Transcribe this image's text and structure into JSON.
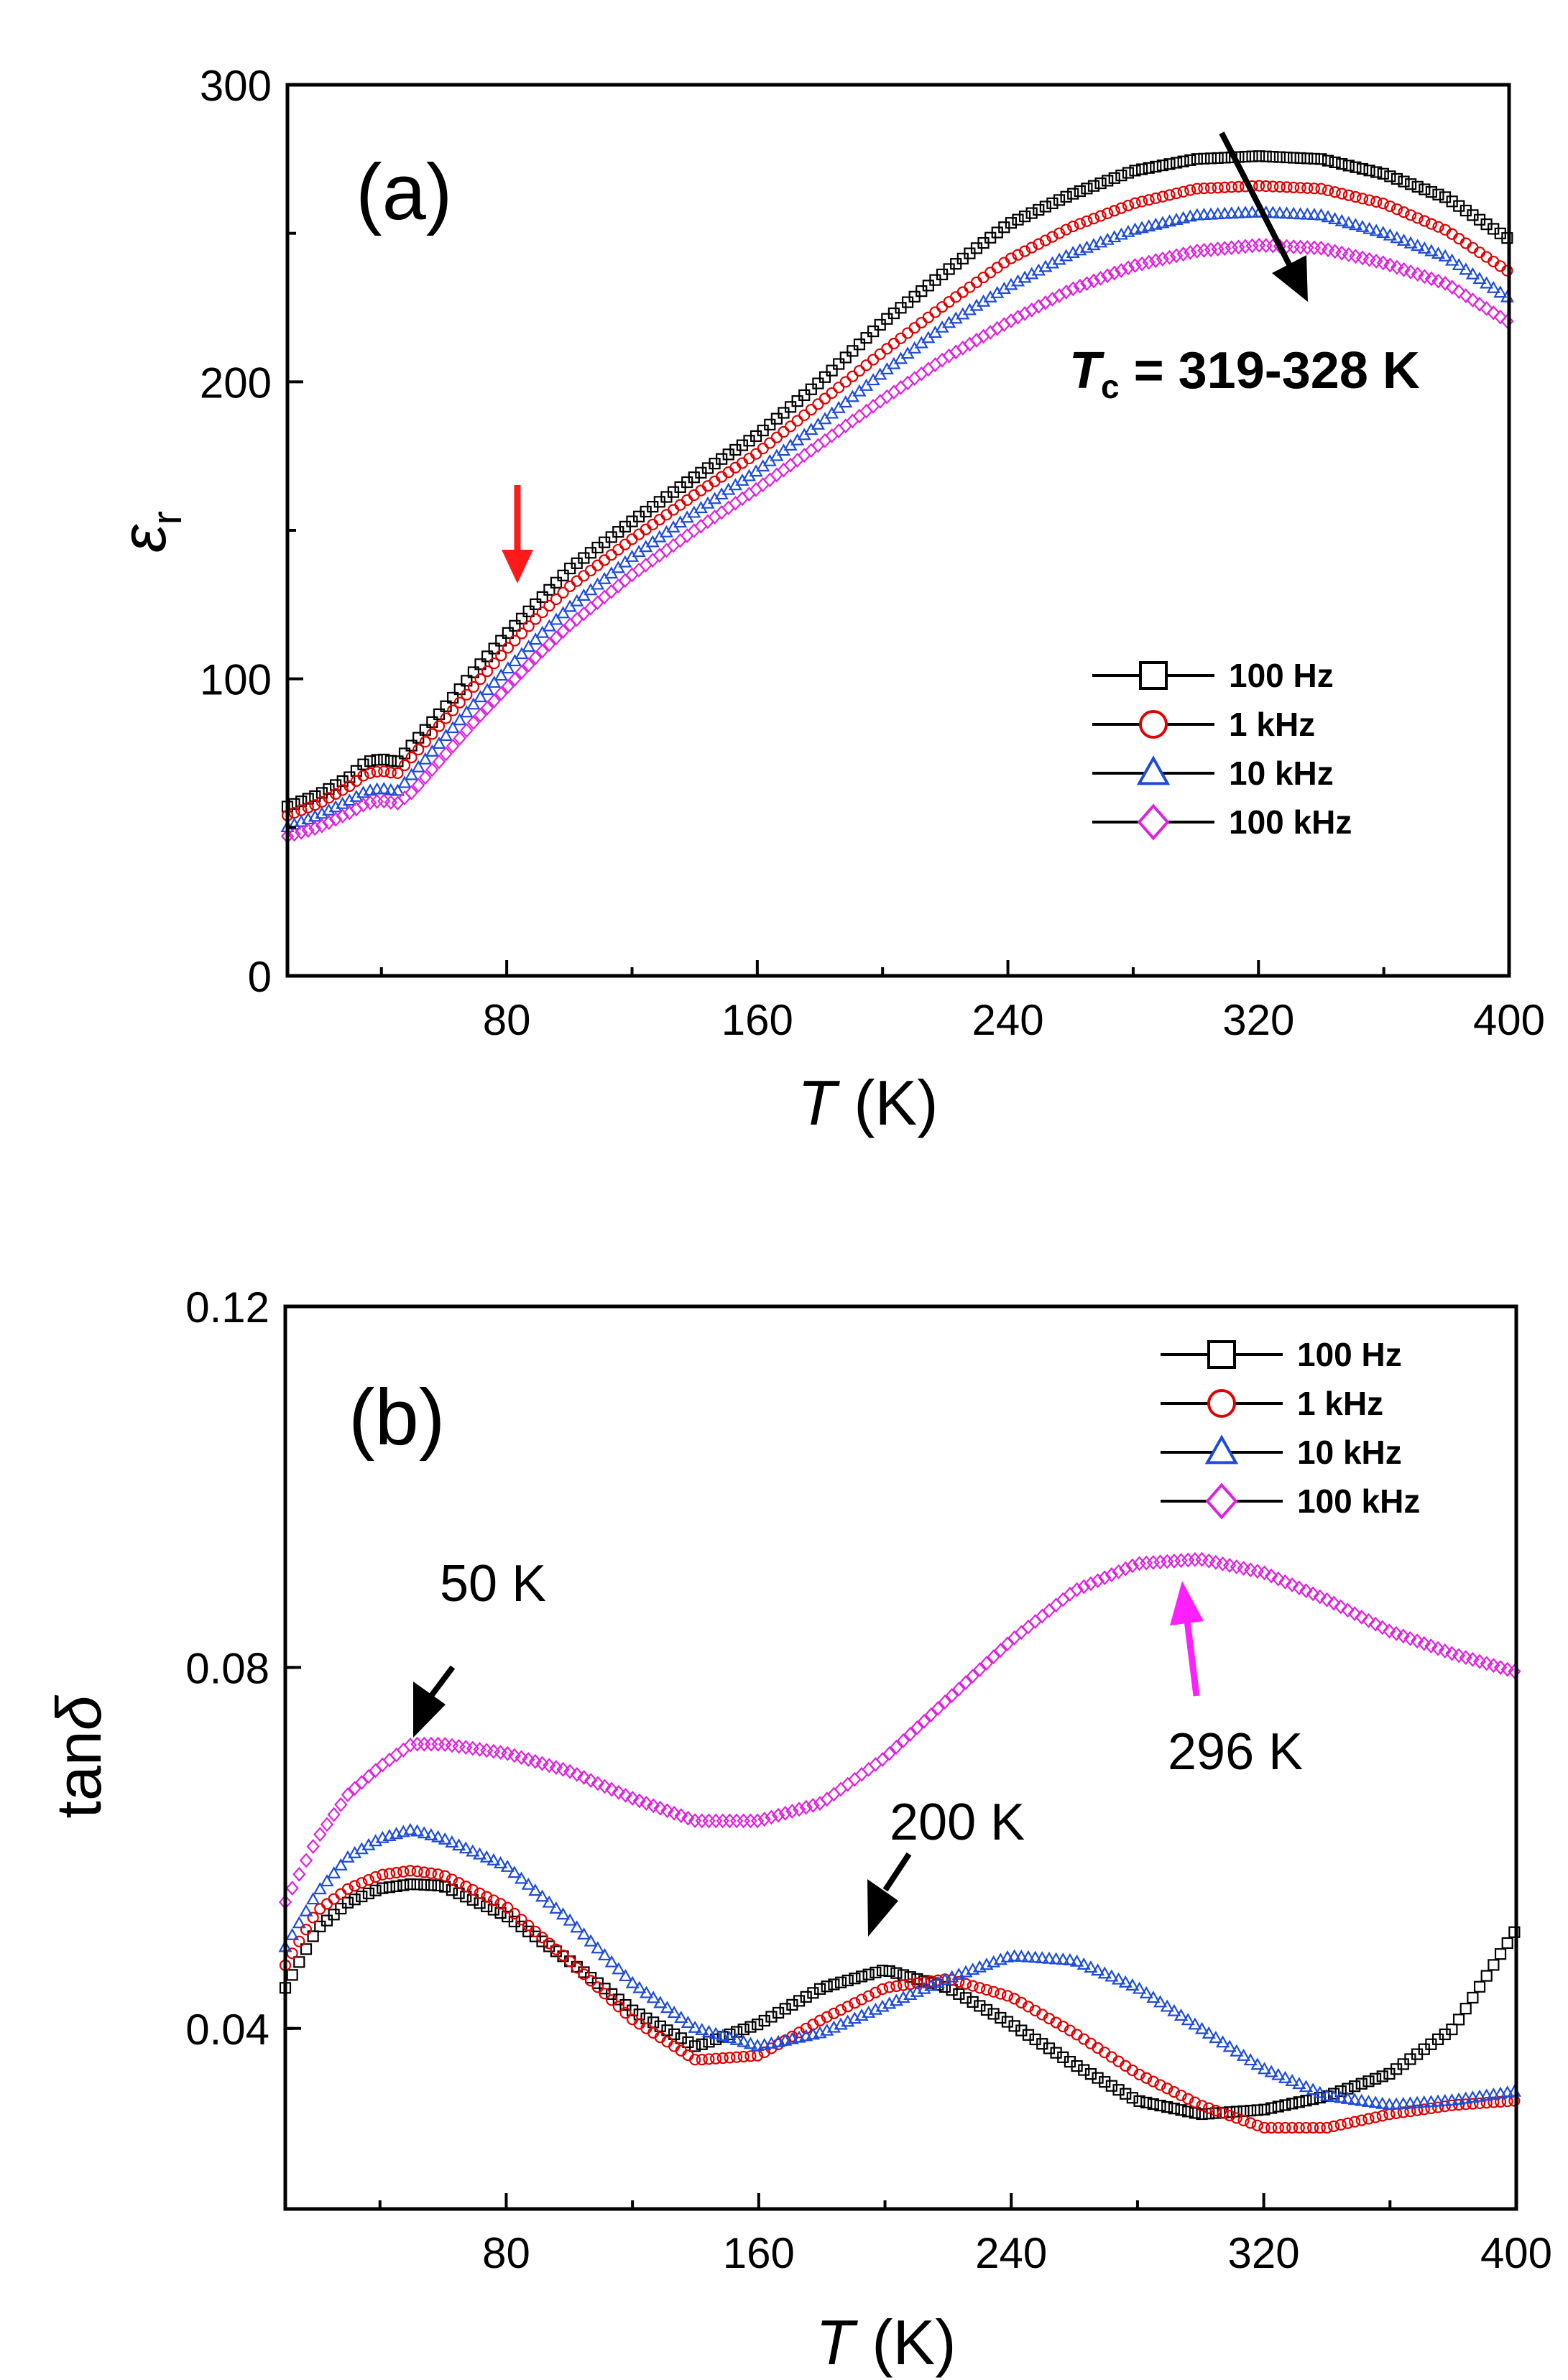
{
  "chart_data": [
    {
      "type": "scatter",
      "panel_label": "(a)",
      "xlabel_italic": "T",
      "xlabel_rest": " (K)",
      "ylabel_main": "ε",
      "ylabel_sub": "r",
      "xlim": [
        10,
        400
      ],
      "ylim": [
        0,
        300
      ],
      "xticks": [
        80,
        160,
        240,
        320,
        400
      ],
      "yticks": [
        0,
        100,
        200,
        300
      ],
      "legend": "center-right",
      "grid": false,
      "annotation_tc_italic": "T",
      "annotation_tc_sub": "c",
      "annotation_tc_rest": " = 319-328 K",
      "series": [
        {
          "name": "100 Hz",
          "marker": "square",
          "color": "#000000",
          "x": [
            10,
            20,
            30,
            35,
            40,
            45,
            50,
            60,
            70,
            80,
            90,
            100,
            120,
            140,
            160,
            180,
            200,
            220,
            240,
            260,
            280,
            300,
            320,
            340,
            360,
            380,
            400
          ],
          "y": [
            57,
            61,
            67,
            72,
            73,
            72,
            78,
            90,
            103,
            115,
            126,
            137,
            153,
            168,
            182,
            200,
            220,
            237,
            253,
            263,
            271,
            275,
            276,
            275,
            270,
            262,
            248
          ]
        },
        {
          "name": "1 kHz",
          "marker": "circle",
          "color": "#e00000",
          "x": [
            10,
            20,
            30,
            35,
            40,
            45,
            50,
            60,
            70,
            80,
            90,
            100,
            120,
            140,
            160,
            180,
            200,
            220,
            240,
            260,
            280,
            300,
            320,
            340,
            360,
            380,
            400
          ],
          "y": [
            54,
            58,
            64,
            68,
            69,
            68,
            74,
            86,
            98,
            110,
            121,
            131,
            147,
            162,
            176,
            193,
            210,
            226,
            241,
            252,
            260,
            265,
            266,
            265,
            260,
            251,
            237
          ]
        },
        {
          "name": "10 kHz",
          "marker": "triangle",
          "color": "#1e4cd8",
          "x": [
            10,
            20,
            30,
            35,
            40,
            45,
            50,
            60,
            70,
            80,
            90,
            100,
            120,
            140,
            160,
            180,
            200,
            220,
            240,
            260,
            280,
            300,
            320,
            340,
            360,
            380,
            400
          ],
          "y": [
            50,
            54,
            59,
            62,
            63,
            62,
            68,
            80,
            92,
            103,
            114,
            124,
            141,
            156,
            170,
            186,
            203,
            219,
            232,
            243,
            251,
            256,
            257,
            256,
            250,
            242,
            228
          ]
        },
        {
          "name": "100 kHz",
          "marker": "diamond",
          "color": "#e020e0",
          "x": [
            10,
            20,
            30,
            35,
            40,
            45,
            50,
            60,
            70,
            80,
            90,
            100,
            120,
            140,
            160,
            180,
            200,
            220,
            240,
            260,
            280,
            300,
            320,
            340,
            360,
            380,
            400
          ],
          "y": [
            47,
            50,
            55,
            58,
            59,
            58,
            62,
            74,
            86,
            97,
            108,
            118,
            135,
            150,
            164,
            179,
            194,
            208,
            220,
            231,
            239,
            244,
            246,
            245,
            240,
            233,
            220
          ]
        }
      ]
    },
    {
      "type": "scatter",
      "panel_label": "(b)",
      "xlabel_italic": "T",
      "xlabel_rest": " (K)",
      "ylabel_main": "tan",
      "ylabel_italic": "δ",
      "xlim": [
        10,
        400
      ],
      "ylim": [
        0.02,
        0.12
      ],
      "xticks": [
        80,
        160,
        240,
        320,
        400
      ],
      "yticks": [
        0.04,
        0.08,
        0.12
      ],
      "yticklabels": [
        "0.04",
        "0.08",
        "0.12"
      ],
      "legend": "top-right",
      "grid": false,
      "annotations": [
        {
          "text": "50 K"
        },
        {
          "text": "200 K"
        },
        {
          "text": "296 K"
        }
      ],
      "series": [
        {
          "name": "100 Hz",
          "marker": "square",
          "color": "#000000",
          "x": [
            10,
            20,
            30,
            40,
            50,
            60,
            80,
            100,
            120,
            140,
            160,
            180,
            200,
            220,
            240,
            260,
            280,
            300,
            320,
            340,
            360,
            380,
            400
          ],
          "y": [
            0.0445,
            0.051,
            0.054,
            0.0555,
            0.056,
            0.0558,
            0.0525,
            0.0475,
            0.042,
            0.038,
            0.0405,
            0.0445,
            0.0465,
            0.0445,
            0.0405,
            0.036,
            0.032,
            0.0305,
            0.031,
            0.0325,
            0.035,
            0.04,
            0.051
          ]
        },
        {
          "name": "1 kHz",
          "marker": "circle",
          "color": "#e00000",
          "x": [
            10,
            20,
            30,
            40,
            50,
            60,
            80,
            100,
            120,
            140,
            160,
            180,
            200,
            220,
            240,
            260,
            280,
            300,
            320,
            340,
            360,
            380,
            400
          ],
          "y": [
            0.047,
            0.053,
            0.0555,
            0.057,
            0.0575,
            0.057,
            0.0535,
            0.0475,
            0.041,
            0.0365,
            0.037,
            0.041,
            0.0445,
            0.0455,
            0.0435,
            0.0395,
            0.035,
            0.0315,
            0.029,
            0.029,
            0.0305,
            0.0315,
            0.032
          ]
        },
        {
          "name": "10 kHz",
          "marker": "triangle",
          "color": "#1e4cd8",
          "x": [
            10,
            20,
            30,
            40,
            50,
            60,
            80,
            100,
            120,
            140,
            160,
            180,
            200,
            220,
            240,
            260,
            280,
            300,
            320,
            340,
            360,
            380,
            400
          ],
          "y": [
            0.049,
            0.055,
            0.059,
            0.061,
            0.062,
            0.061,
            0.058,
            0.052,
            0.045,
            0.04,
            0.038,
            0.0395,
            0.0425,
            0.0455,
            0.048,
            0.0475,
            0.0445,
            0.04,
            0.0355,
            0.0325,
            0.0315,
            0.032,
            0.033
          ]
        },
        {
          "name": "100 kHz",
          "marker": "diamond",
          "color": "#e020e0",
          "x": [
            10,
            20,
            30,
            40,
            50,
            60,
            80,
            100,
            120,
            140,
            160,
            180,
            200,
            220,
            240,
            260,
            280,
            300,
            320,
            340,
            360,
            380,
            400
          ],
          "y": [
            0.054,
            0.061,
            0.066,
            0.069,
            0.0715,
            0.0715,
            0.0705,
            0.0685,
            0.0655,
            0.063,
            0.063,
            0.065,
            0.07,
            0.0765,
            0.083,
            0.0885,
            0.0915,
            0.092,
            0.0905,
            0.0875,
            0.084,
            0.0815,
            0.0795
          ]
        }
      ]
    }
  ]
}
